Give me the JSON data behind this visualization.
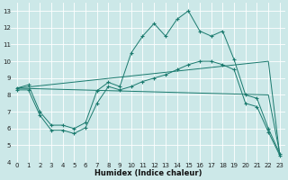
{
  "xlabel": "Humidex (Indice chaleur)",
  "bg_color": "#cce8e8",
  "line_color": "#1a7a6e",
  "grid_color": "#ffffff",
  "xlim": [
    -0.5,
    23.5
  ],
  "ylim": [
    4,
    13.5
  ],
  "xticks": [
    0,
    1,
    2,
    3,
    4,
    5,
    6,
    7,
    8,
    9,
    10,
    11,
    12,
    13,
    14,
    15,
    16,
    17,
    18,
    19,
    20,
    21,
    22,
    23
  ],
  "yticks": [
    4,
    5,
    6,
    7,
    8,
    9,
    10,
    11,
    12,
    13
  ],
  "line1_x": [
    0,
    1,
    2,
    3,
    4,
    5,
    6,
    7,
    8,
    9,
    10,
    11,
    12,
    13,
    14,
    15,
    16,
    17,
    18,
    19,
    20,
    21,
    22,
    23
  ],
  "line1_y": [
    8.4,
    8.6,
    7.0,
    6.2,
    6.2,
    6.0,
    6.35,
    8.25,
    8.75,
    8.5,
    10.5,
    11.5,
    12.25,
    11.5,
    12.5,
    13.0,
    11.8,
    11.5,
    11.8,
    10.1,
    8.0,
    7.8,
    6.0,
    4.5
  ],
  "line2_x": [
    0,
    22,
    23
  ],
  "line2_y": [
    8.4,
    8.0,
    4.5
  ],
  "line3_x": [
    0,
    22,
    23
  ],
  "line3_y": [
    8.4,
    10.0,
    4.4
  ],
  "line4_x": [
    0,
    1,
    2,
    3,
    4,
    5,
    6,
    7,
    8,
    9,
    10,
    11,
    12,
    13,
    14,
    15,
    16,
    17,
    18,
    19,
    20,
    21,
    22,
    23
  ],
  "line4_y": [
    8.3,
    8.3,
    6.8,
    5.9,
    5.9,
    5.7,
    6.05,
    7.5,
    8.5,
    8.3,
    8.5,
    8.8,
    9.0,
    9.2,
    9.5,
    9.8,
    10.0,
    10.0,
    9.8,
    9.5,
    7.5,
    7.3,
    5.8,
    4.4
  ]
}
